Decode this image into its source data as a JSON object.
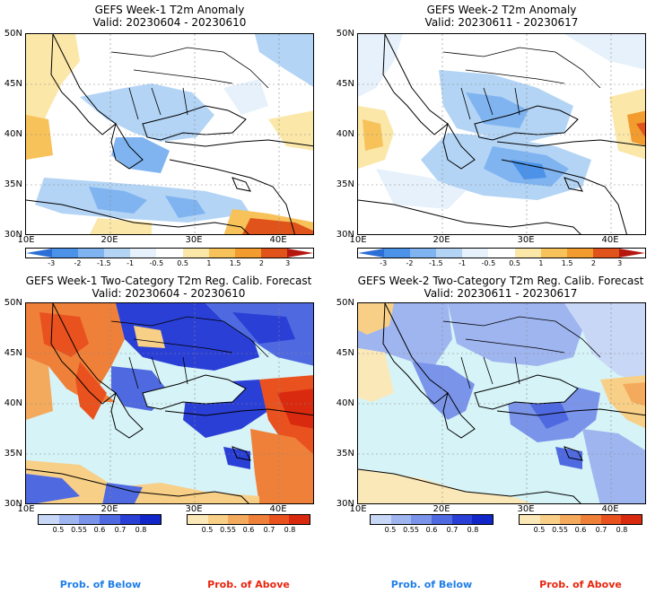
{
  "panels": [
    {
      "title": "GEFS Week-1 T2m Anomaly",
      "valid": "Valid: 20230604 - 20230610",
      "lat_labels": [
        "50N",
        "45N",
        "40N",
        "35N",
        "30N"
      ],
      "lon_labels": [
        "10E",
        "20E",
        "30E",
        "40E"
      ],
      "colorbar": {
        "colors": [
          "#2b6fd6",
          "#4b92e8",
          "#7fb4f0",
          "#b3d4f5",
          "#e6f1fb",
          "#ffffff",
          "#fbe7a8",
          "#f7c25a",
          "#f29b2e",
          "#e0541b",
          "#b5170f"
        ],
        "ticks": [
          "-3",
          "-2",
          "-1.5",
          "-1",
          "-0.5",
          "0.5",
          "1",
          "1.5",
          "2",
          "3"
        ]
      }
    },
    {
      "title": "GEFS Week-2 T2m Anomaly",
      "valid": "Valid: 20230611 - 20230617",
      "lat_labels": [
        "50N",
        "45N",
        "40N",
        "35N",
        "30N"
      ],
      "lon_labels": [
        "10E",
        "20E",
        "30E",
        "40E"
      ],
      "colorbar": {
        "colors": [
          "#2b6fd6",
          "#4b92e8",
          "#7fb4f0",
          "#b3d4f5",
          "#e6f1fb",
          "#ffffff",
          "#fbe7a8",
          "#f7c25a",
          "#f29b2e",
          "#e0541b",
          "#b5170f"
        ],
        "ticks": [
          "-3",
          "-2",
          "-1.5",
          "-1",
          "-0.5",
          "0.5",
          "1",
          "1.5",
          "2",
          "3"
        ]
      }
    },
    {
      "title": "GEFS Week-1 Two-Category T2m Reg. Calib. Forecast",
      "valid": "Valid: 20230604 - 20230610",
      "lat_labels": [
        "50N",
        "45N",
        "40N",
        "35N",
        "30N"
      ],
      "lon_labels": [
        "10E",
        "20E",
        "30E",
        "40E"
      ],
      "below_colorbar": {
        "colors": [
          "#c9d7f7",
          "#9fb5f0",
          "#7a94ea",
          "#4f6ae0",
          "#2a3fd6",
          "#1126c8"
        ],
        "ticks": [
          "0.5",
          "0.55",
          "0.6",
          "0.7",
          "0.8"
        ]
      },
      "above_colorbar": {
        "colors": [
          "#fbe8b8",
          "#f8cf86",
          "#f4aa5c",
          "#ef8039",
          "#e9521f",
          "#d92a10"
        ],
        "ticks": [
          "0.5",
          "0.55",
          "0.6",
          "0.7",
          "0.8"
        ]
      },
      "below_label": "Prob. of Below",
      "above_label": "Prob. of Above"
    },
    {
      "title": "GEFS Week-2 Two-Category T2m Reg. Calib. Forecast",
      "valid": "Valid: 20230611 - 20230617",
      "lat_labels": [
        "50N",
        "45N",
        "40N",
        "35N",
        "30N"
      ],
      "lon_labels": [
        "10E",
        "20E",
        "30E",
        "40E"
      ],
      "below_colorbar": {
        "colors": [
          "#c9d7f7",
          "#9fb5f0",
          "#7a94ea",
          "#4f6ae0",
          "#2a3fd6",
          "#1126c8"
        ],
        "ticks": [
          "0.5",
          "0.55",
          "0.6",
          "0.7",
          "0.8"
        ]
      },
      "above_colorbar": {
        "colors": [
          "#fbe8b8",
          "#f8cf86",
          "#f4aa5c",
          "#ef8039",
          "#e9521f",
          "#d92a10"
        ],
        "ticks": [
          "0.5",
          "0.55",
          "0.6",
          "0.7",
          "0.8"
        ]
      },
      "below_label": "Prob. of Below",
      "above_label": "Prob. of Above"
    }
  ],
  "colors": {
    "sea": "#d6f3f7",
    "land_neutral": "#ffffff",
    "border": "#000000",
    "below_label": "#1f7ee8",
    "above_label": "#e8250e"
  }
}
